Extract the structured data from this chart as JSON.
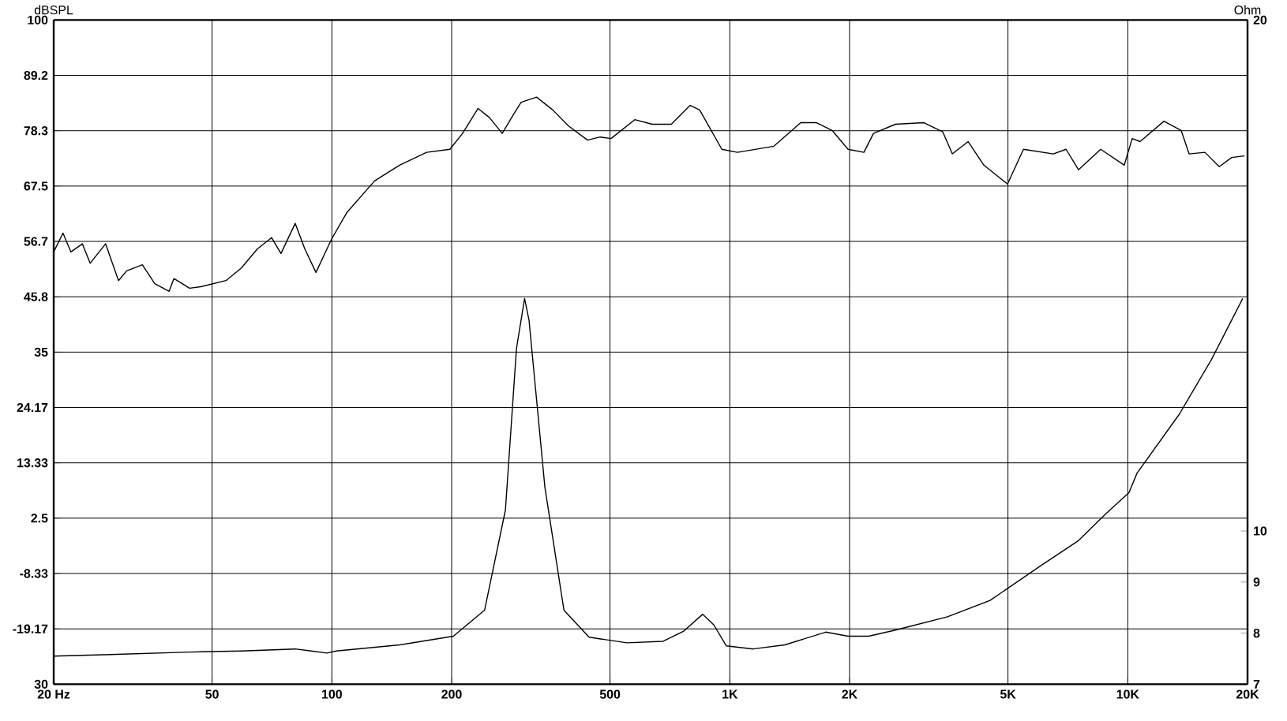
{
  "chart_data": {
    "type": "line",
    "ylabel": "dBSPL",
    "y2label": "Ohm",
    "log": "x",
    "grid": true,
    "xlim": [
      20,
      20000
    ],
    "ylim": [
      -30,
      100
    ],
    "y2lim": [
      7,
      20
    ],
    "xticks": [
      {
        "value": 20,
        "label": "20 Hz"
      },
      50,
      100,
      200,
      500,
      {
        "value": 1000,
        "label": "1K"
      },
      {
        "value": 2000,
        "label": "2K"
      },
      {
        "value": 5000,
        "label": "5K"
      },
      {
        "value": 10000,
        "label": "10K"
      },
      {
        "value": 20000,
        "label": "20K"
      }
    ],
    "yticks": [
      {
        "value": -30,
        "label": "30"
      },
      -19.17,
      -8.33,
      2.5,
      13.33,
      24.17,
      35,
      {
        "value": 45.83,
        "label": "45.8"
      },
      {
        "value": 56.67,
        "label": "56.7"
      },
      67.5,
      {
        "value": 78.33,
        "label": "78.3"
      },
      {
        "value": 89.17,
        "label": "89.2"
      },
      100
    ],
    "y2ticks": [
      7,
      8,
      9,
      10,
      20
    ],
    "series": [
      {
        "color": "#000000",
        "x": [
          20,
          21.1,
          22.1,
          23.6,
          24.7,
          27.0,
          29.1,
          30.5,
          33.4,
          35.9,
          39.0,
          40.1,
          43.9,
          46.8,
          54.2,
          59.3,
          65.0,
          70.6,
          74.5,
          80.9,
          85.5,
          91.2,
          99.8,
          109,
          128,
          148,
          173,
          198,
          213,
          233,
          249,
          268,
          286,
          299,
          327,
          359,
          393,
          439,
          472,
          503,
          577,
          638,
          713,
          795,
          840,
          955,
          1045,
          1291,
          1507,
          1652,
          1808,
          1982,
          2173,
          2296,
          2607,
          3075,
          3429,
          3624,
          3973,
          4348,
          4988,
          5469,
          6500,
          6998,
          7519,
          8551,
          9800,
          10260,
          10740,
          12330,
          13620,
          14260,
          15630,
          16980,
          18250,
          19640
        ],
        "values": [
          54.6,
          58.3,
          54.6,
          56.2,
          52.4,
          56.2,
          49.0,
          50.9,
          52.1,
          48.4,
          46.9,
          49.4,
          47.5,
          47.8,
          49.0,
          51.5,
          55.2,
          57.4,
          54.3,
          60.2,
          55.2,
          50.6,
          57.1,
          62.3,
          68.5,
          71.6,
          74.1,
          74.7,
          77.8,
          82.7,
          80.9,
          77.8,
          81.5,
          83.9,
          84.9,
          82.4,
          79.3,
          76.5,
          77.1,
          76.8,
          80.5,
          79.6,
          79.6,
          83.3,
          82.4,
          74.7,
          74.1,
          75.3,
          79.9,
          79.9,
          78.4,
          74.7,
          74.1,
          77.8,
          79.6,
          79.9,
          78.1,
          73.8,
          76.2,
          71.6,
          67.9,
          74.7,
          73.8,
          74.7,
          70.7,
          74.7,
          71.6,
          76.8,
          76.2,
          80.2,
          78.4,
          73.8,
          74.1,
          71.3,
          73.1,
          73.4
        ]
      },
      {
        "color": "#000000",
        "axis": "y2",
        "x": [
          20,
          27.8,
          43.9,
          59.3,
          80.9,
          88.7,
          97.2,
          102.6,
          148,
          202,
          242,
          273,
          291,
          305,
          313,
          343,
          383,
          443,
          551,
          680,
          766,
          855,
          912,
          980,
          1145,
          1375,
          1743,
          1982,
          2233,
          2607,
          3524,
          4509,
          6097,
          7519,
          8790,
          10070,
          10550,
          13490,
          16220,
          19450
        ],
        "values": [
          7.55,
          7.58,
          7.63,
          7.65,
          7.69,
          7.65,
          7.61,
          7.65,
          7.77,
          7.94,
          8.45,
          10.41,
          13.57,
          14.55,
          14.12,
          10.86,
          8.45,
          7.92,
          7.81,
          7.84,
          8.04,
          8.37,
          8.16,
          7.75,
          7.69,
          7.77,
          8.02,
          7.94,
          7.94,
          8.06,
          8.32,
          8.64,
          9.34,
          9.81,
          10.33,
          10.75,
          11.13,
          12.29,
          13.35,
          14.55
        ]
      }
    ]
  }
}
